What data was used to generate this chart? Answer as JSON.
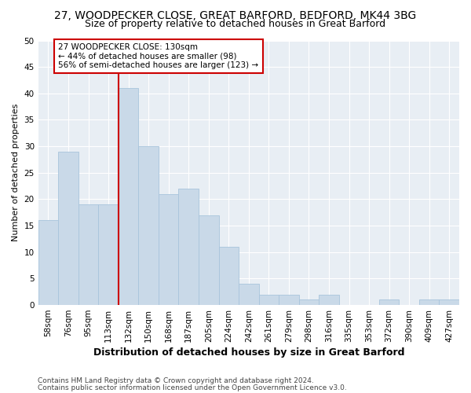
{
  "title1": "27, WOODPECKER CLOSE, GREAT BARFORD, BEDFORD, MK44 3BG",
  "title2": "Size of property relative to detached houses in Great Barford",
  "xlabel": "Distribution of detached houses by size in Great Barford",
  "ylabel": "Number of detached properties",
  "footnote1": "Contains HM Land Registry data © Crown copyright and database right 2024.",
  "footnote2": "Contains public sector information licensed under the Open Government Licence v3.0.",
  "categories": [
    "58sqm",
    "76sqm",
    "95sqm",
    "113sqm",
    "132sqm",
    "150sqm",
    "168sqm",
    "187sqm",
    "205sqm",
    "224sqm",
    "242sqm",
    "261sqm",
    "279sqm",
    "298sqm",
    "316sqm",
    "335sqm",
    "353sqm",
    "372sqm",
    "390sqm",
    "409sqm",
    "427sqm"
  ],
  "values": [
    16,
    29,
    19,
    19,
    41,
    30,
    21,
    22,
    17,
    11,
    4,
    2,
    2,
    1,
    2,
    0,
    0,
    1,
    0,
    1,
    1
  ],
  "bar_color": "#c9d9e8",
  "bar_edge_color": "#a8c4dc",
  "highlight_line_index": 4,
  "highlight_line_color": "#cc0000",
  "annotation_box_text": "27 WOODPECKER CLOSE: 130sqm\n← 44% of detached houses are smaller (98)\n56% of semi-detached houses are larger (123) →",
  "annotation_box_color": "#cc0000",
  "ylim": [
    0,
    50
  ],
  "yticks": [
    0,
    5,
    10,
    15,
    20,
    25,
    30,
    35,
    40,
    45,
    50
  ],
  "bg_color": "#e8eef4",
  "grid_color": "#ffffff",
  "title1_fontsize": 10,
  "title2_fontsize": 9,
  "xlabel_fontsize": 9,
  "ylabel_fontsize": 8,
  "tick_fontsize": 7.5,
  "annotation_fontsize": 7.5,
  "footnote_fontsize": 6.5
}
